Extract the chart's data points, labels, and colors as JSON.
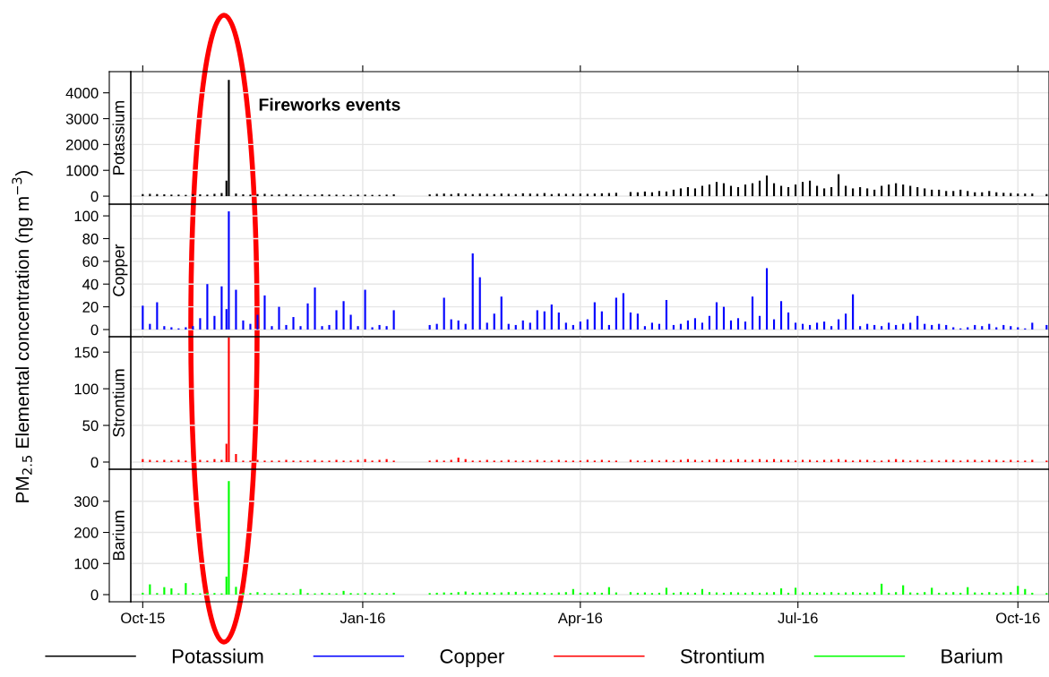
{
  "chart_data": [
    {
      "type": "bar",
      "ylabel": "PM$_{2.5}$ Elemental concentration (ηg m$^{−3}$)",
      "annotations": [
        "Fireworks events"
      ],
      "legend": "bottom",
      "grid": true,
      "tick_labels": "y",
      "x": [
        "2015-10-01",
        "2015-10-04",
        "2015-10-07",
        "2015-10-10",
        "2015-10-13",
        "2015-10-16",
        "2015-10-19",
        "2015-10-22",
        "2015-10-25",
        "2015-10-28",
        "2015-10-31",
        "2015-11-03",
        "2015-11-05",
        "2015-11-06",
        "2015-11-09",
        "2015-11-12",
        "2015-11-15",
        "2015-11-18",
        "2015-11-21",
        "2015-11-24",
        "2015-11-27",
        "2015-11-30",
        "2015-12-03",
        "2015-12-06",
        "2015-12-09",
        "2015-12-12",
        "2015-12-15",
        "2015-12-18",
        "2015-12-21",
        "2015-12-24",
        "2015-12-27",
        "2015-12-30",
        "2016-01-02",
        "2016-01-05",
        "2016-01-08",
        "2016-01-11",
        "2016-01-14",
        "2016-01-17",
        "2016-01-20",
        "2016-01-23",
        "2016-01-26",
        "2016-01-29",
        "2016-02-01",
        "2016-02-04",
        "2016-02-07",
        "2016-02-10",
        "2016-02-13",
        "2016-02-16",
        "2016-02-19",
        "2016-02-22",
        "2016-02-25",
        "2016-02-28",
        "2016-03-02",
        "2016-03-05",
        "2016-03-08",
        "2016-03-11",
        "2016-03-14",
        "2016-03-17",
        "2016-03-20",
        "2016-03-23",
        "2016-03-26",
        "2016-03-29",
        "2016-04-01",
        "2016-04-04",
        "2016-04-07",
        "2016-04-10",
        "2016-04-13",
        "2016-04-16",
        "2016-04-19",
        "2016-04-22",
        "2016-04-25",
        "2016-04-28",
        "2016-05-01",
        "2016-05-04",
        "2016-05-07",
        "2016-05-10",
        "2016-05-13",
        "2016-05-16",
        "2016-05-19",
        "2016-05-22",
        "2016-05-25",
        "2016-05-28",
        "2016-05-31",
        "2016-06-03",
        "2016-06-06",
        "2016-06-09",
        "2016-06-12",
        "2016-06-15",
        "2016-06-18",
        "2016-06-21",
        "2016-06-24",
        "2016-06-27",
        "2016-06-30",
        "2016-07-03",
        "2016-07-06",
        "2016-07-09",
        "2016-07-12",
        "2016-07-15",
        "2016-07-18",
        "2016-07-21",
        "2016-07-24",
        "2016-07-27",
        "2016-07-30",
        "2016-08-02",
        "2016-08-05",
        "2016-08-08",
        "2016-08-11",
        "2016-08-14",
        "2016-08-17",
        "2016-08-20",
        "2016-08-23",
        "2016-08-26",
        "2016-08-29",
        "2016-09-01",
        "2016-09-04",
        "2016-09-07",
        "2016-09-10",
        "2016-09-13",
        "2016-09-16",
        "2016-09-19",
        "2016-09-22",
        "2016-09-25",
        "2016-09-28",
        "2016-10-01",
        "2016-10-04",
        "2016-10-07",
        "2016-10-10",
        "2016-10-13"
      ],
      "xlim": [
        "2015-09-26",
        "2016-10-14"
      ],
      "xticks": [
        {
          "value": "2015-10-01",
          "label": null
        },
        {
          "value": "2016-01-01",
          "label": null
        },
        {
          "value": "2016-04-01",
          "label": null
        },
        {
          "value": "2016-07-01",
          "label": null
        },
        {
          "value": "2016-10-01",
          "label": null
        }
      ],
      "title": "Potassium",
      "ylim": [
        -310,
        4820
      ],
      "yticks": [
        0,
        1000,
        2000,
        3000,
        4000
      ],
      "series": [
        {
          "name": "Potassium",
          "color": "#000000",
          "values": [
            80,
            90,
            80,
            70,
            60,
            60,
            50,
            80,
            70,
            60,
            90,
            120,
            600,
            4500,
            100,
            70,
            60,
            80,
            90,
            60,
            70,
            80,
            60,
            70,
            50,
            60,
            70,
            60,
            60,
            50,
            50,
            60,
            60,
            50,
            50,
            60,
            70,
            null,
            null,
            null,
            null,
            70,
            90,
            100,
            80,
            110,
            90,
            80,
            100,
            90,
            80,
            100,
            90,
            80,
            110,
            100,
            90,
            120,
            80,
            100,
            90,
            90,
            100,
            90,
            100,
            110,
            120,
            130,
            null,
            160,
            150,
            180,
            150,
            200,
            180,
            250,
            300,
            350,
            300,
            400,
            450,
            550,
            500,
            400,
            350,
            450,
            500,
            600,
            800,
            500,
            400,
            350,
            450,
            550,
            600,
            400,
            300,
            350,
            850,
            400,
            300,
            350,
            300,
            250,
            400,
            450,
            500,
            450,
            400,
            350,
            300,
            250,
            250,
            200,
            200,
            250,
            200,
            150,
            150,
            200,
            150,
            130,
            120,
            100,
            100,
            100,
            null,
            80
          ]
        }
      ]
    },
    {
      "type": "bar",
      "legend": "bottom",
      "grid": true,
      "tick_labels": "y",
      "x": [
        "2015-10-01",
        "2015-10-04",
        "2015-10-07",
        "2015-10-10",
        "2015-10-13",
        "2015-10-16",
        "2015-10-19",
        "2015-10-22",
        "2015-10-25",
        "2015-10-28",
        "2015-10-31",
        "2015-11-03",
        "2015-11-05",
        "2015-11-06",
        "2015-11-09",
        "2015-11-12",
        "2015-11-15",
        "2015-11-18",
        "2015-11-21",
        "2015-11-24",
        "2015-11-27",
        "2015-11-30",
        "2015-12-03",
        "2015-12-06",
        "2015-12-09",
        "2015-12-12",
        "2015-12-15",
        "2015-12-18",
        "2015-12-21",
        "2015-12-24",
        "2015-12-27",
        "2015-12-30",
        "2016-01-02",
        "2016-01-05",
        "2016-01-08",
        "2016-01-11",
        "2016-01-14",
        "2016-01-17",
        "2016-01-20",
        "2016-01-23",
        "2016-01-26",
        "2016-01-29",
        "2016-02-01",
        "2016-02-04",
        "2016-02-07",
        "2016-02-10",
        "2016-02-13",
        "2016-02-16",
        "2016-02-19",
        "2016-02-22",
        "2016-02-25",
        "2016-02-28",
        "2016-03-02",
        "2016-03-05",
        "2016-03-08",
        "2016-03-11",
        "2016-03-14",
        "2016-03-17",
        "2016-03-20",
        "2016-03-23",
        "2016-03-26",
        "2016-03-29",
        "2016-04-01",
        "2016-04-04",
        "2016-04-07",
        "2016-04-10",
        "2016-04-13",
        "2016-04-16",
        "2016-04-19",
        "2016-04-22",
        "2016-04-25",
        "2016-04-28",
        "2016-05-01",
        "2016-05-04",
        "2016-05-07",
        "2016-05-10",
        "2016-05-13",
        "2016-05-16",
        "2016-05-19",
        "2016-05-22",
        "2016-05-25",
        "2016-05-28",
        "2016-05-31",
        "2016-06-03",
        "2016-06-06",
        "2016-06-09",
        "2016-06-12",
        "2016-06-15",
        "2016-06-18",
        "2016-06-21",
        "2016-06-24",
        "2016-06-27",
        "2016-06-30",
        "2016-07-03",
        "2016-07-06",
        "2016-07-09",
        "2016-07-12",
        "2016-07-15",
        "2016-07-18",
        "2016-07-21",
        "2016-07-24",
        "2016-07-27",
        "2016-07-30",
        "2016-08-02",
        "2016-08-05",
        "2016-08-08",
        "2016-08-11",
        "2016-08-14",
        "2016-08-17",
        "2016-08-20",
        "2016-08-23",
        "2016-08-26",
        "2016-08-29",
        "2016-09-01",
        "2016-09-04",
        "2016-09-07",
        "2016-09-10",
        "2016-09-13",
        "2016-09-16",
        "2016-09-19",
        "2016-09-22",
        "2016-09-25",
        "2016-09-28",
        "2016-10-01",
        "2016-10-04",
        "2016-10-07",
        "2016-10-10",
        "2016-10-13"
      ],
      "xlim": [
        "2015-09-26",
        "2016-10-14"
      ],
      "xticks": [
        {
          "value": "2015-10-01",
          "label": null
        },
        {
          "value": "2016-01-01",
          "label": null
        },
        {
          "value": "2016-04-01",
          "label": null
        },
        {
          "value": "2016-07-01",
          "label": null
        },
        {
          "value": "2016-10-01",
          "label": null
        }
      ],
      "title": "Copper",
      "ylim": [
        -6.3,
        110.3
      ],
      "yticks": [
        0,
        20,
        40,
        60,
        80,
        100
      ],
      "series": [
        {
          "name": "Copper",
          "color": "#0000ff",
          "values": [
            21,
            5,
            24,
            3,
            2,
            1,
            2,
            3,
            10,
            40,
            12,
            38,
            18,
            104,
            35,
            8,
            5,
            13,
            30,
            3,
            20,
            4,
            11,
            3,
            23,
            37,
            3,
            4,
            17,
            25,
            13,
            3,
            35,
            2,
            4,
            3,
            17,
            null,
            null,
            null,
            null,
            4,
            5,
            28,
            9,
            8,
            5,
            67,
            46,
            6,
            14,
            29,
            5,
            4,
            8,
            6,
            17,
            16,
            22,
            15,
            6,
            4,
            7,
            9,
            24,
            16,
            4,
            28,
            32,
            15,
            14,
            3,
            6,
            5,
            26,
            4,
            5,
            8,
            10,
            6,
            12,
            24,
            20,
            8,
            10,
            7,
            29,
            12,
            54,
            9,
            25,
            15,
            6,
            5,
            4,
            6,
            7,
            3,
            9,
            14,
            31,
            3,
            5,
            4,
            3,
            6,
            4,
            5,
            6,
            12,
            5,
            4,
            5,
            4,
            2,
            1,
            2,
            4,
            3,
            5,
            2,
            4,
            3,
            2,
            1,
            6,
            null,
            4
          ]
        }
      ]
    },
    {
      "type": "bar",
      "legend": "bottom",
      "grid": true,
      "tick_labels": "y",
      "x": [
        "2015-10-01",
        "2015-10-04",
        "2015-10-07",
        "2015-10-10",
        "2015-10-13",
        "2015-10-16",
        "2015-10-19",
        "2015-10-22",
        "2015-10-25",
        "2015-10-28",
        "2015-10-31",
        "2015-11-03",
        "2015-11-05",
        "2015-11-06",
        "2015-11-09",
        "2015-11-12",
        "2015-11-15",
        "2015-11-18",
        "2015-11-21",
        "2015-11-24",
        "2015-11-27",
        "2015-11-30",
        "2015-12-03",
        "2015-12-06",
        "2015-12-09",
        "2015-12-12",
        "2015-12-15",
        "2015-12-18",
        "2015-12-21",
        "2015-12-24",
        "2015-12-27",
        "2015-12-30",
        "2016-01-02",
        "2016-01-05",
        "2016-01-08",
        "2016-01-11",
        "2016-01-14",
        "2016-01-17",
        "2016-01-20",
        "2016-01-23",
        "2016-01-26",
        "2016-01-29",
        "2016-02-01",
        "2016-02-04",
        "2016-02-07",
        "2016-02-10",
        "2016-02-13",
        "2016-02-16",
        "2016-02-19",
        "2016-02-22",
        "2016-02-25",
        "2016-02-28",
        "2016-03-02",
        "2016-03-05",
        "2016-03-08",
        "2016-03-11",
        "2016-03-14",
        "2016-03-17",
        "2016-03-20",
        "2016-03-23",
        "2016-03-26",
        "2016-03-29",
        "2016-04-01",
        "2016-04-04",
        "2016-04-07",
        "2016-04-10",
        "2016-04-13",
        "2016-04-16",
        "2016-04-19",
        "2016-04-22",
        "2016-04-25",
        "2016-04-28",
        "2016-05-01",
        "2016-05-04",
        "2016-05-07",
        "2016-05-10",
        "2016-05-13",
        "2016-05-16",
        "2016-05-19",
        "2016-05-22",
        "2016-05-25",
        "2016-05-28",
        "2016-05-31",
        "2016-06-03",
        "2016-06-06",
        "2016-06-09",
        "2016-06-12",
        "2016-06-15",
        "2016-06-18",
        "2016-06-21",
        "2016-06-24",
        "2016-06-27",
        "2016-06-30",
        "2016-07-03",
        "2016-07-06",
        "2016-07-09",
        "2016-07-12",
        "2016-07-15",
        "2016-07-18",
        "2016-07-21",
        "2016-07-24",
        "2016-07-27",
        "2016-07-30",
        "2016-08-02",
        "2016-08-05",
        "2016-08-08",
        "2016-08-11",
        "2016-08-14",
        "2016-08-17",
        "2016-08-20",
        "2016-08-23",
        "2016-08-26",
        "2016-08-29",
        "2016-09-01",
        "2016-09-04",
        "2016-09-07",
        "2016-09-10",
        "2016-09-13",
        "2016-09-16",
        "2016-09-19",
        "2016-09-22",
        "2016-09-25",
        "2016-09-28",
        "2016-10-01",
        "2016-10-04",
        "2016-10-07",
        "2016-10-10",
        "2016-10-13"
      ],
      "xlim": [
        "2015-09-26",
        "2016-10-14"
      ],
      "xticks": [
        {
          "value": "2015-10-01",
          "label": null
        },
        {
          "value": "2016-01-01",
          "label": null
        },
        {
          "value": "2016-04-01",
          "label": null
        },
        {
          "value": "2016-07-01",
          "label": null
        },
        {
          "value": "2016-10-01",
          "label": null
        }
      ],
      "title": "Strontium",
      "ylim": [
        -9.8,
        171
      ],
      "yticks": [
        0,
        50,
        100,
        150
      ],
      "series": [
        {
          "name": "Strontium",
          "color": "#ff0000",
          "values": [
            4,
            3,
            2,
            3,
            2,
            3,
            2,
            2,
            3,
            2,
            4,
            3,
            25,
            170,
            11,
            2,
            2,
            3,
            2,
            2,
            2,
            3,
            2,
            2,
            2,
            3,
            2,
            2,
            3,
            2,
            2,
            3,
            4,
            2,
            3,
            4,
            2,
            null,
            null,
            null,
            null,
            2,
            3,
            2,
            3,
            6,
            4,
            2,
            2,
            3,
            2,
            2,
            3,
            2,
            2,
            2,
            3,
            2,
            2,
            3,
            2,
            2,
            2,
            3,
            2,
            3,
            2,
            2,
            null,
            3,
            2,
            2,
            3,
            2,
            3,
            2,
            3,
            4,
            3,
            2,
            3,
            4,
            3,
            3,
            4,
            3,
            3,
            4,
            3,
            4,
            3,
            3,
            2,
            3,
            3,
            2,
            3,
            3,
            4,
            3,
            2,
            3,
            3,
            2,
            2,
            3,
            4,
            3,
            2,
            3,
            2,
            3,
            2,
            3,
            3,
            2,
            3,
            3,
            2,
            3,
            3,
            2,
            3,
            2,
            2,
            3,
            null,
            2
          ]
        }
      ]
    },
    {
      "type": "bar",
      "legend": "bottom",
      "grid": true,
      "x": [
        "2015-10-01",
        "2015-10-04",
        "2015-10-07",
        "2015-10-10",
        "2015-10-13",
        "2015-10-16",
        "2015-10-19",
        "2015-10-22",
        "2015-10-25",
        "2015-10-28",
        "2015-10-31",
        "2015-11-03",
        "2015-11-05",
        "2015-11-06",
        "2015-11-09",
        "2015-11-12",
        "2015-11-15",
        "2015-11-18",
        "2015-11-21",
        "2015-11-24",
        "2015-11-27",
        "2015-11-30",
        "2015-12-03",
        "2015-12-06",
        "2015-12-09",
        "2015-12-12",
        "2015-12-15",
        "2015-12-18",
        "2015-12-21",
        "2015-12-24",
        "2015-12-27",
        "2015-12-30",
        "2016-01-02",
        "2016-01-05",
        "2016-01-08",
        "2016-01-11",
        "2016-01-14",
        "2016-01-17",
        "2016-01-20",
        "2016-01-23",
        "2016-01-26",
        "2016-01-29",
        "2016-02-01",
        "2016-02-04",
        "2016-02-07",
        "2016-02-10",
        "2016-02-13",
        "2016-02-16",
        "2016-02-19",
        "2016-02-22",
        "2016-02-25",
        "2016-02-28",
        "2016-03-02",
        "2016-03-05",
        "2016-03-08",
        "2016-03-11",
        "2016-03-14",
        "2016-03-17",
        "2016-03-20",
        "2016-03-23",
        "2016-03-26",
        "2016-03-29",
        "2016-04-01",
        "2016-04-04",
        "2016-04-07",
        "2016-04-10",
        "2016-04-13",
        "2016-04-16",
        "2016-04-19",
        "2016-04-22",
        "2016-04-25",
        "2016-04-28",
        "2016-05-01",
        "2016-05-04",
        "2016-05-07",
        "2016-05-10",
        "2016-05-13",
        "2016-05-16",
        "2016-05-19",
        "2016-05-22",
        "2016-05-25",
        "2016-05-28",
        "2016-05-31",
        "2016-06-03",
        "2016-06-06",
        "2016-06-09",
        "2016-06-12",
        "2016-06-15",
        "2016-06-18",
        "2016-06-21",
        "2016-06-24",
        "2016-06-27",
        "2016-06-30",
        "2016-07-03",
        "2016-07-06",
        "2016-07-09",
        "2016-07-12",
        "2016-07-15",
        "2016-07-18",
        "2016-07-21",
        "2016-07-24",
        "2016-07-27",
        "2016-07-30",
        "2016-08-02",
        "2016-08-05",
        "2016-08-08",
        "2016-08-11",
        "2016-08-14",
        "2016-08-17",
        "2016-08-20",
        "2016-08-23",
        "2016-08-26",
        "2016-08-29",
        "2016-09-01",
        "2016-09-04",
        "2016-09-07",
        "2016-09-10",
        "2016-09-13",
        "2016-09-16",
        "2016-09-19",
        "2016-09-22",
        "2016-09-25",
        "2016-09-28",
        "2016-10-01",
        "2016-10-04",
        "2016-10-07",
        "2016-10-10",
        "2016-10-13"
      ],
      "xlim": [
        "2015-09-26",
        "2016-10-14"
      ],
      "xticks": [
        {
          "value": "2015-10-01",
          "label": "Oct-15"
        },
        {
          "value": "2016-01-01",
          "label": "Jan-16"
        },
        {
          "value": "2016-04-01",
          "label": "Apr-16"
        },
        {
          "value": "2016-07-01",
          "label": "Jul-16"
        },
        {
          "value": "2016-10-01",
          "label": "Oct-16"
        }
      ],
      "title": "Barium",
      "ylim": [
        -23,
        403
      ],
      "yticks": [
        0,
        100,
        200,
        300
      ],
      "series": [
        {
          "name": "Barium",
          "color": "#00ff00",
          "values": [
            6,
            33,
            5,
            24,
            20,
            4,
            37,
            5,
            4,
            6,
            5,
            4,
            58,
            365,
            25,
            6,
            5,
            8,
            5,
            4,
            6,
            5,
            4,
            18,
            5,
            4,
            6,
            5,
            4,
            12,
            5,
            4,
            6,
            5,
            4,
            5,
            6,
            null,
            null,
            null,
            null,
            5,
            6,
            7,
            6,
            8,
            10,
            6,
            7,
            8,
            6,
            7,
            8,
            9,
            6,
            7,
            8,
            6,
            5,
            7,
            8,
            18,
            6,
            7,
            8,
            6,
            24,
            7,
            null,
            8,
            6,
            7,
            5,
            6,
            22,
            6,
            8,
            7,
            6,
            18,
            8,
            7,
            6,
            8,
            7,
            6,
            8,
            6,
            7,
            8,
            20,
            6,
            22,
            7,
            8,
            6,
            7,
            8,
            6,
            7,
            8,
            6,
            7,
            8,
            35,
            6,
            8,
            30,
            7,
            6,
            8,
            22,
            6,
            7,
            8,
            6,
            24,
            7,
            6,
            8,
            6,
            7,
            8,
            28,
            18,
            6,
            null,
            5
          ]
        }
      ]
    }
  ]
}
